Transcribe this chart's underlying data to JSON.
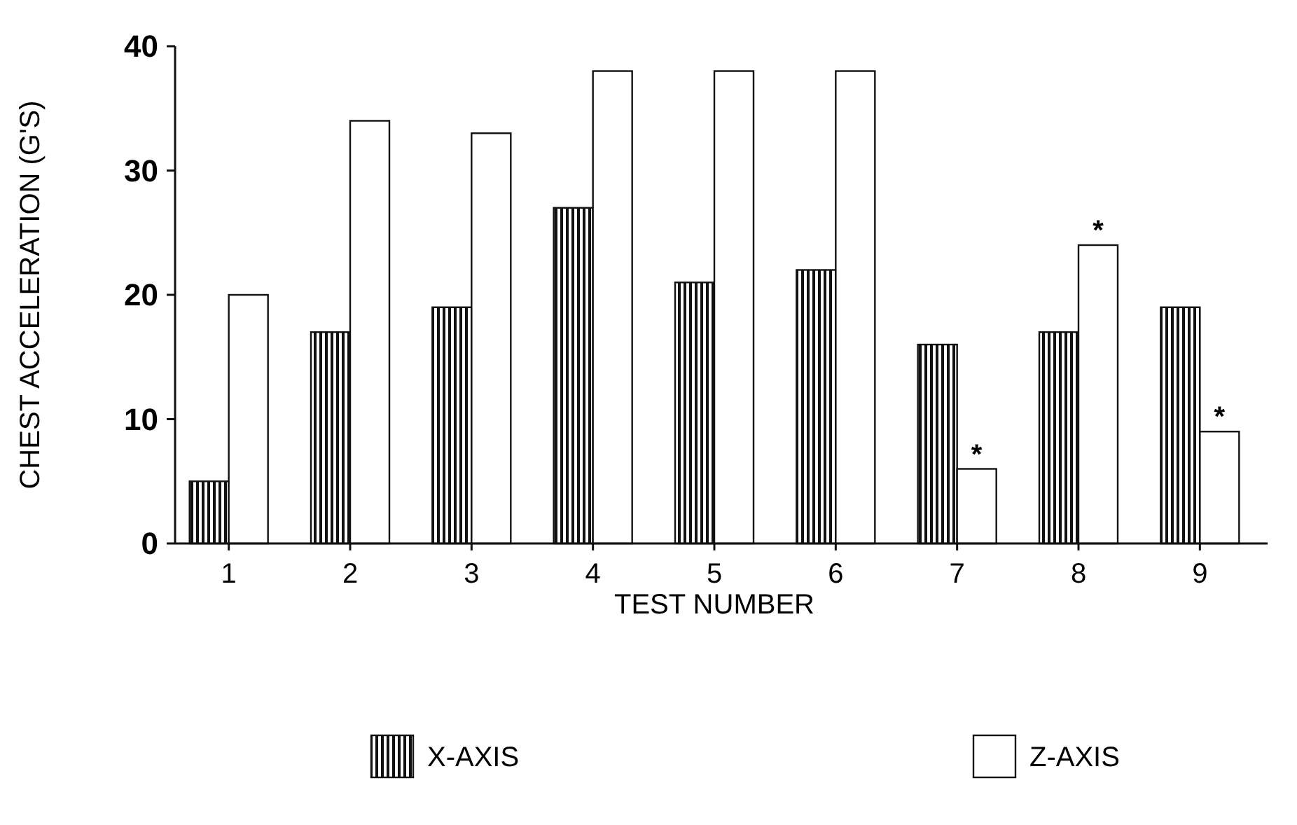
{
  "chart_data": {
    "type": "bar",
    "xlabel": "TEST NUMBER",
    "ylabel": "CHEST ACCELERATION (G'S)",
    "categories": [
      "1",
      "2",
      "3",
      "4",
      "5",
      "6",
      "7",
      "8",
      "9"
    ],
    "series": [
      {
        "name": "X-AXIS",
        "color": "#111111",
        "values": [
          5,
          17,
          19,
          27,
          21,
          22,
          16,
          17,
          19
        ]
      },
      {
        "name": "Z-AXIS",
        "color": "#ffffff",
        "values": [
          20,
          34,
          33,
          38,
          38,
          38,
          6,
          24,
          9
        ]
      }
    ],
    "ylim": [
      0,
      40
    ],
    "yticks": [
      0,
      10,
      20,
      30,
      40
    ],
    "grid": false,
    "legend": "bottom",
    "annotations": [
      {
        "text": "*",
        "x": "7",
        "y": 6
      },
      {
        "text": "*",
        "x": "8",
        "y": 24
      },
      {
        "text": "*",
        "x": "9",
        "y": 9
      }
    ]
  }
}
